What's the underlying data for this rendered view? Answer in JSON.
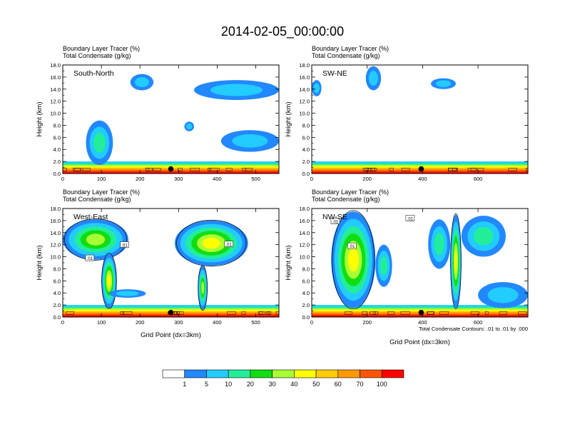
{
  "figure": {
    "title": "2014-02-05_00:00:00",
    "panel_header_line1": "Boundary Layer Tracer   (%)",
    "panel_header_line2": "Total Condensate   (g/kg)",
    "x_axis_label": "Grid Point (dx=3km)",
    "contour_note": "Total Condensate Contours: .01 to .01 by .000"
  },
  "colors": {
    "levels": [
      "#ffffff",
      "#2288ff",
      "#22ccff",
      "#22ee99",
      "#11dd11",
      "#aaff33",
      "#ffff00",
      "#ffcc00",
      "#ff9900",
      "#ff5500",
      "#ff0000"
    ]
  },
  "colorbar": {
    "labels": [
      "1",
      "5",
      "10",
      "20",
      "30",
      "40",
      "50",
      "60",
      "70",
      "100"
    ]
  },
  "chart_data": [
    {
      "type": "heatmap",
      "title": "South-North",
      "ylabel": "Height (km)",
      "xlabel": "",
      "xlim": [
        0,
        560
      ],
      "ylim": [
        0,
        18
      ],
      "x_ticks": [
        "0",
        "100",
        "200",
        "300",
        "400",
        "500"
      ],
      "y_ticks": [
        "0.0",
        "2.0",
        "4.0",
        "6.0",
        "8.0",
        "10.0",
        "12.0",
        "14.0",
        "16.0",
        "18.0"
      ],
      "marker_x": 280,
      "contour_labels": [],
      "clouds": [
        {
          "x0": 60,
          "x1": 130,
          "y0": 1.4,
          "y1": 8.8,
          "level": 3
        },
        {
          "x0": 175,
          "x1": 235,
          "y0": 13.8,
          "y1": 16.5,
          "level": 2
        },
        {
          "x0": 340,
          "x1": 560,
          "y0": 12.2,
          "y1": 15.5,
          "level": 2
        },
        {
          "x0": 410,
          "x1": 560,
          "y0": 3.6,
          "y1": 7.2,
          "level": 2
        },
        {
          "x0": 315,
          "x1": 340,
          "y0": 7.0,
          "y1": 8.6,
          "level": 2
        }
      ]
    },
    {
      "type": "heatmap",
      "title": "SW-NE",
      "ylabel": "Height (km)",
      "xlabel": "",
      "xlim": [
        0,
        780
      ],
      "ylim": [
        0,
        18
      ],
      "x_ticks": [
        "0",
        "200",
        "400",
        "600"
      ],
      "y_ticks": [
        "0.0",
        "2.0",
        "4.0",
        "6.0",
        "8.0",
        "10.0",
        "12.0",
        "14.0",
        "16.0",
        "18.0"
      ],
      "marker_x": 395,
      "contour_labels": [],
      "clouds": [
        {
          "x0": 0,
          "x1": 35,
          "y0": 12.8,
          "y1": 15.5,
          "level": 2
        },
        {
          "x0": 195,
          "x1": 250,
          "y0": 13.8,
          "y1": 17.8,
          "level": 2
        },
        {
          "x0": 430,
          "x1": 520,
          "y0": 14.0,
          "y1": 15.8,
          "level": 2
        }
      ]
    },
    {
      "type": "heatmap",
      "title": "West-East",
      "ylabel": "Height (km)",
      "xlabel": "Grid Point (dx=3km)",
      "xlim": [
        0,
        560
      ],
      "ylim": [
        0,
        18
      ],
      "x_ticks": [
        "0",
        "100",
        "200",
        "300",
        "400",
        "500"
      ],
      "y_ticks": [
        "0.0",
        "2.0",
        "4.0",
        "6.0",
        "8.0",
        "10.0",
        "12.0",
        "14.0",
        "16.0",
        "18.0"
      ],
      "marker_x": 280,
      "contour_labels": [
        ".01",
        ".01",
        ".01"
      ],
      "clouds": [
        {
          "x0": 0,
          "x1": 170,
          "y0": 9.5,
          "y1": 16.2,
          "level": 5
        },
        {
          "x0": 100,
          "x1": 140,
          "y0": 1.5,
          "y1": 10.5,
          "level": 6
        },
        {
          "x0": 120,
          "x1": 215,
          "y0": 3.2,
          "y1": 4.6,
          "level": 2
        },
        {
          "x0": 290,
          "x1": 480,
          "y0": 8.5,
          "y1": 16.0,
          "level": 6
        },
        {
          "x0": 350,
          "x1": 375,
          "y0": 1.2,
          "y1": 8.5,
          "level": 5
        }
      ]
    },
    {
      "type": "heatmap",
      "title": "NW-SE",
      "ylabel": "Height (km)",
      "xlabel": "Grid Point (dx=3km)",
      "xlim": [
        0,
        780
      ],
      "ylim": [
        0,
        18
      ],
      "x_ticks": [
        "0",
        "200",
        "400",
        "600"
      ],
      "y_ticks": [
        "0.0",
        "2.0",
        "4.0",
        "6.0",
        "8.0",
        "10.0",
        "12.0",
        "14.0",
        "16.0",
        "18.0"
      ],
      "marker_x": 395,
      "contour_labels": [
        ".01",
        ".01",
        ".01"
      ],
      "clouds": [
        {
          "x0": 70,
          "x1": 230,
          "y0": 1.5,
          "y1": 17.5,
          "level": 6
        },
        {
          "x0": 230,
          "x1": 290,
          "y0": 5.0,
          "y1": 12.0,
          "level": 3
        },
        {
          "x0": 500,
          "x1": 540,
          "y0": 1.5,
          "y1": 17.0,
          "level": 6
        },
        {
          "x0": 420,
          "x1": 500,
          "y0": 8.0,
          "y1": 16.2,
          "level": 3
        },
        {
          "x0": 540,
          "x1": 700,
          "y0": 10.0,
          "y1": 16.8,
          "level": 3
        },
        {
          "x0": 600,
          "x1": 780,
          "y0": 1.5,
          "y1": 5.8,
          "level": 2
        }
      ]
    }
  ]
}
